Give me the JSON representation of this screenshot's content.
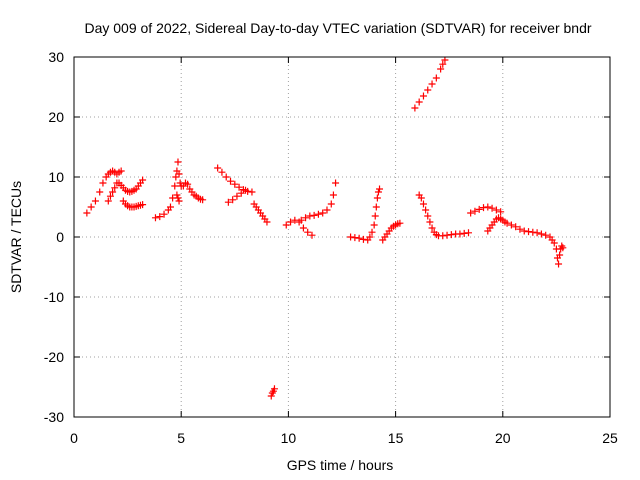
{
  "chart_data": {
    "type": "scatter",
    "title": "Day 009 of 2022, Sidereal Day-to-day VTEC variation (SDTVAR) for receiver bndr",
    "xlabel": "GPS time / hours",
    "ylabel": "SDTVAR / TECUs",
    "xlim": [
      0,
      25
    ],
    "ylim": [
      -30,
      30
    ],
    "xticks": [
      "0",
      "5",
      "10",
      "15",
      "20",
      "25"
    ],
    "yticks": [
      "-30",
      "-20",
      "-10",
      "0",
      "10",
      "20",
      "30"
    ],
    "grid": true,
    "marker": "+",
    "color": "#ff0000",
    "series": [
      {
        "name": "SDTVAR",
        "x": [
          0.6,
          0.8,
          1.0,
          1.2,
          1.35,
          1.5,
          1.6,
          1.7,
          1.8,
          1.9,
          2.0,
          2.1,
          2.2,
          1.6,
          1.7,
          1.8,
          1.9,
          2.0,
          2.1,
          2.2,
          2.3,
          2.4,
          2.5,
          2.6,
          2.7,
          2.8,
          2.9,
          3.0,
          3.1,
          3.2,
          2.3,
          2.4,
          2.5,
          2.6,
          2.7,
          2.8,
          2.9,
          3.0,
          3.1,
          3.2,
          3.8,
          4.0,
          4.2,
          4.4,
          4.5,
          4.6,
          4.7,
          4.75,
          4.8,
          4.85,
          4.9,
          4.95,
          5.0,
          5.1,
          5.2,
          5.3,
          5.4,
          5.5,
          5.6,
          5.7,
          5.8,
          5.9,
          6.0,
          4.8,
          4.85,
          4.9,
          6.7,
          6.9,
          7.1,
          7.3,
          7.5,
          7.7,
          7.9,
          8.1,
          8.3,
          7.2,
          7.4,
          7.6,
          7.8,
          8.0,
          8.4,
          8.5,
          8.6,
          8.7,
          8.8,
          8.9,
          9.0,
          9.2,
          9.25,
          9.3,
          9.35,
          9.9,
          10.1,
          10.3,
          10.5,
          10.7,
          10.9,
          11.1,
          10.6,
          10.8,
          11.0,
          11.2,
          11.4,
          11.6,
          11.8,
          12.0,
          12.1,
          12.2,
          12.9,
          13.1,
          13.3,
          13.5,
          13.7,
          13.8,
          13.9,
          14.0,
          14.05,
          14.1,
          14.15,
          14.2,
          14.25,
          14.4,
          14.5,
          14.6,
          14.7,
          14.8,
          14.9,
          15.0,
          15.1,
          15.2,
          15.9,
          16.1,
          16.3,
          16.5,
          16.7,
          16.9,
          17.1,
          17.2,
          17.3,
          16.1,
          16.2,
          16.3,
          16.4,
          16.5,
          16.6,
          16.7,
          16.8,
          16.9,
          17.0,
          17.2,
          17.4,
          17.6,
          17.8,
          18.0,
          18.2,
          18.4,
          18.5,
          18.7,
          18.9,
          19.1,
          19.3,
          19.5,
          19.7,
          19.9,
          19.3,
          19.4,
          19.5,
          19.6,
          19.7,
          19.8,
          19.9,
          20.0,
          20.1,
          20.2,
          20.4,
          20.6,
          20.8,
          21.0,
          21.2,
          21.4,
          21.6,
          21.8,
          22.0,
          22.2,
          22.3,
          22.4,
          22.5,
          22.55,
          22.6,
          22.65,
          22.7,
          22.75,
          22.8
        ],
        "y": [
          4.0,
          5.0,
          6.0,
          7.5,
          9.0,
          10.0,
          10.5,
          10.8,
          11.0,
          10.8,
          10.5,
          10.8,
          11.0,
          6.0,
          6.8,
          7.5,
          8.2,
          9.0,
          9.0,
          8.6,
          8.2,
          7.8,
          7.6,
          7.5,
          7.6,
          7.8,
          8.0,
          8.5,
          9.0,
          9.5,
          6.0,
          5.5,
          5.2,
          5.0,
          5.0,
          5.0,
          5.1,
          5.2,
          5.3,
          5.4,
          3.2,
          3.4,
          3.8,
          4.5,
          5.0,
          6.5,
          8.5,
          10.0,
          11.0,
          12.5,
          10.5,
          9.0,
          8.5,
          8.5,
          9.0,
          8.8,
          8.0,
          7.5,
          7.0,
          6.8,
          6.5,
          6.3,
          6.2,
          7.0,
          6.5,
          6.0,
          11.5,
          10.8,
          10.0,
          9.3,
          8.8,
          8.3,
          7.9,
          7.6,
          7.5,
          5.8,
          6.2,
          6.8,
          7.3,
          7.8,
          5.5,
          5.0,
          4.5,
          4.0,
          3.5,
          3.0,
          2.5,
          -26.5,
          -26.0,
          -25.7,
          -25.3,
          2.0,
          2.5,
          2.8,
          2.5,
          1.5,
          0.8,
          0.3,
          2.8,
          3.2,
          3.5,
          3.6,
          3.8,
          4.0,
          4.5,
          5.5,
          7.0,
          9.0,
          0.0,
          -0.1,
          -0.2,
          -0.4,
          -0.5,
          0.0,
          0.8,
          2.0,
          3.5,
          5.0,
          6.5,
          7.5,
          8.0,
          -0.5,
          0.0,
          0.5,
          1.0,
          1.5,
          1.8,
          2.0,
          2.2,
          2.3,
          21.5,
          22.5,
          23.5,
          24.5,
          25.5,
          26.5,
          28.0,
          28.8,
          29.5,
          7.0,
          6.5,
          5.5,
          4.5,
          3.5,
          2.5,
          1.5,
          0.8,
          0.4,
          0.2,
          0.2,
          0.3,
          0.4,
          0.5,
          0.5,
          0.6,
          0.7,
          4.0,
          4.3,
          4.6,
          4.9,
          5.0,
          4.8,
          4.5,
          4.2,
          1.0,
          1.5,
          2.0,
          2.5,
          3.0,
          3.2,
          3.0,
          2.8,
          2.5,
          2.3,
          2.0,
          1.7,
          1.3,
          1.0,
          0.9,
          0.8,
          0.7,
          0.5,
          0.3,
          0.0,
          -0.5,
          -1.0,
          -2.0,
          -3.5,
          -4.5,
          -3.0,
          -2.0,
          -1.5,
          -1.8
        ]
      }
    ]
  }
}
